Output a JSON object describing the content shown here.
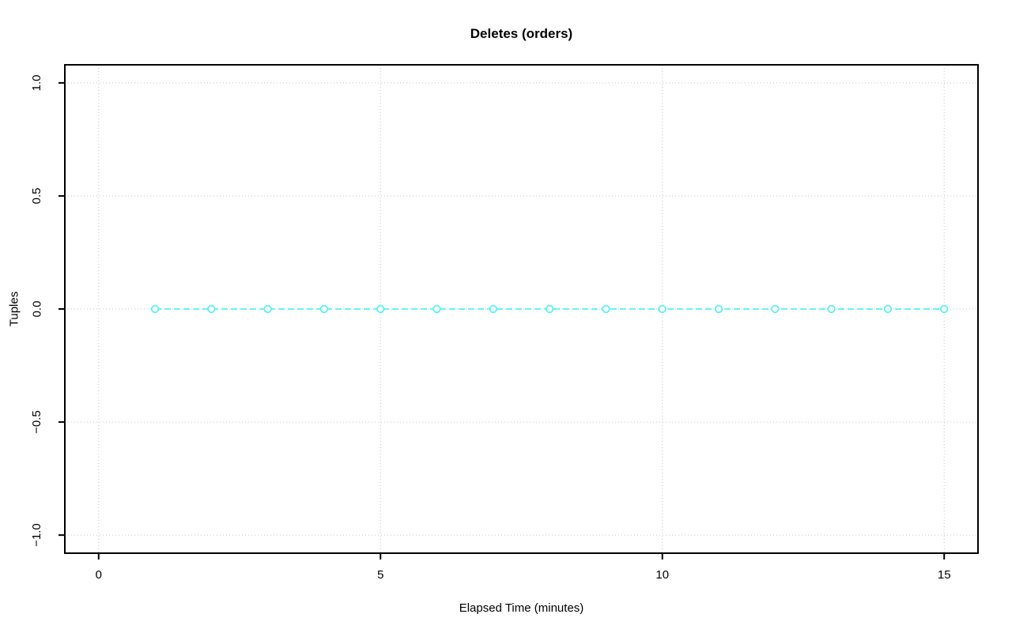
{
  "figure": {
    "background": "#ffffff"
  },
  "chart_data": {
    "type": "line",
    "title": "Deletes (orders)",
    "xlabel": "Elapsed Time (minutes)",
    "ylabel": "Tuples",
    "x": [
      1,
      2,
      3,
      4,
      5,
      6,
      7,
      8,
      9,
      10,
      11,
      12,
      13,
      14,
      15
    ],
    "y": [
      0,
      0,
      0,
      0,
      0,
      0,
      0,
      0,
      0,
      0,
      0,
      0,
      0,
      0,
      0
    ],
    "xlim": [
      0,
      15
    ],
    "ylim": [
      -1,
      1
    ],
    "pad_frac": 0.04,
    "xticks": [
      0,
      5,
      10,
      15
    ],
    "xtick_labels": [
      "0",
      "5",
      "10",
      "15"
    ],
    "yticks": [
      -1,
      -0.5,
      0,
      0.5,
      1
    ],
    "ytick_labels": [
      "−1.0",
      "−0.5",
      "0.0",
      "0.5",
      "1.0"
    ],
    "grid": true,
    "legend": "none",
    "line_style": "dashed",
    "marker": "open-circle",
    "colors": {
      "series": "#55F0F0",
      "grid": "#C6C6C6",
      "axis": "#000000",
      "background": "#FFFFFF"
    }
  }
}
